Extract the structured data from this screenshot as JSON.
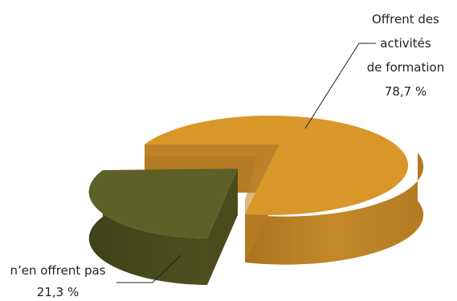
{
  "chart_data": {
    "type": "pie",
    "style": "3d-exploded",
    "slices": [
      {
        "label_lines": [
          "Offrent des",
          "activités",
          "de formation"
        ],
        "value": 78.7,
        "value_text": "78,7 %",
        "color": "#D9972A"
      },
      {
        "label_lines": [
          "n’en offrent pas"
        ],
        "value": 21.3,
        "value_text": "21,3 %",
        "color": "#5E6127"
      }
    ]
  }
}
